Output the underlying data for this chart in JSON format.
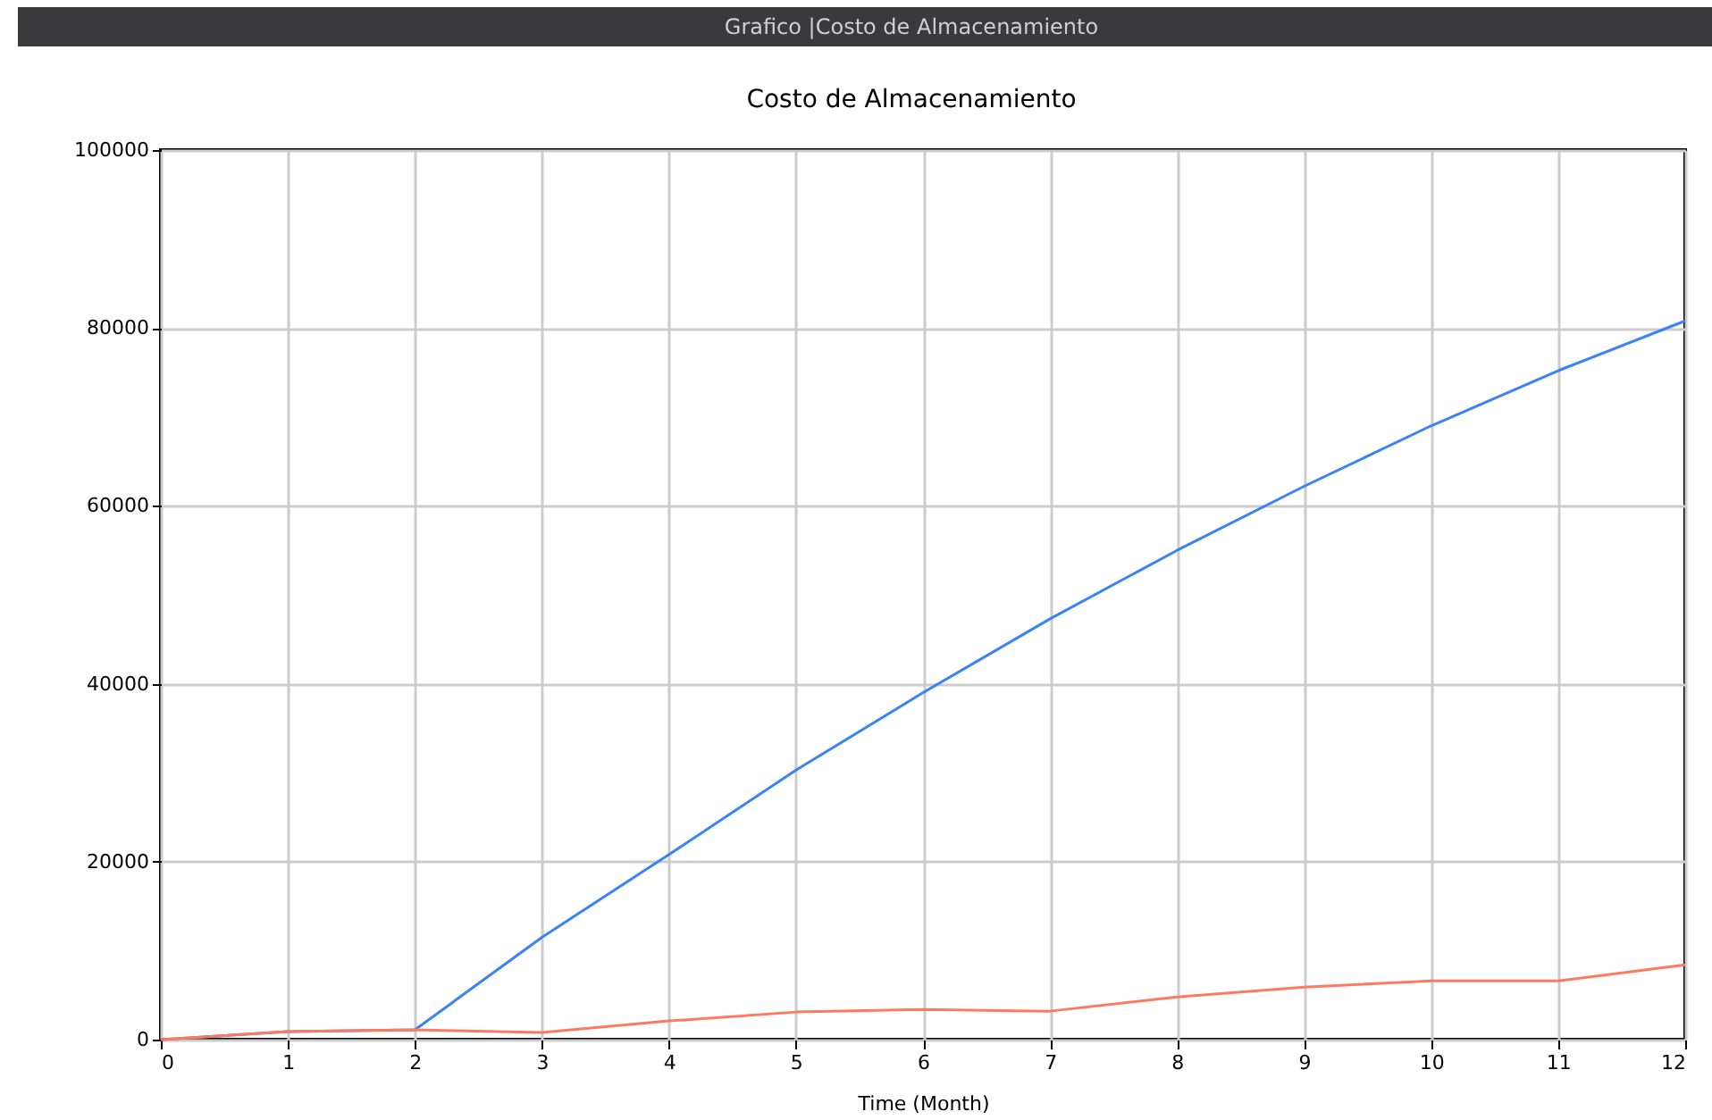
{
  "chart_data": {
    "type": "line",
    "title": "Costo de Almacenamiento",
    "xlabel": "Time (Month)",
    "annotations": [
      "Grafico |Costo de Almacenamiento"
    ],
    "x": [
      0,
      1,
      2,
      3,
      4,
      5,
      6,
      7,
      8,
      9,
      10,
      11,
      12
    ],
    "series": [
      {
        "color": "#3b82f6",
        "values": [
          0,
          900,
          1100,
          11500,
          20800,
          30300,
          39000,
          47300,
          55000,
          62200,
          69000,
          75200,
          80800
        ]
      },
      {
        "color": "#ff7a5c",
        "values": [
          0,
          900,
          1100,
          800,
          2100,
          3100,
          3400,
          3200,
          4800,
          5900,
          6600,
          6600,
          8400
        ]
      }
    ],
    "xlim": [
      0,
      12
    ],
    "xticks": [
      0,
      1,
      2,
      3,
      4,
      5,
      6,
      7,
      8,
      9,
      10,
      11,
      12
    ],
    "ylim": [
      0,
      100000
    ],
    "yticks": [
      0,
      20000,
      40000,
      60000,
      80000,
      100000
    ],
    "grid": true,
    "marker": "none",
    "line_style": "solid"
  }
}
